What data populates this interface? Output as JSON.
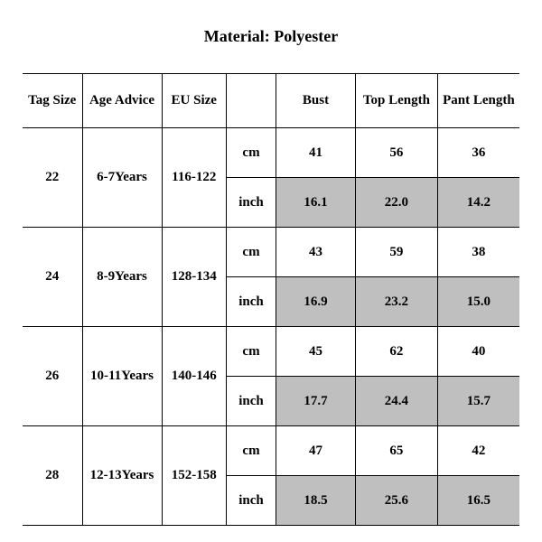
{
  "title": "Material: Polyester",
  "columns": {
    "tag_size": "Tag Size",
    "age_advice": "Age Advice",
    "eu_size": "EU Size",
    "unit": "",
    "bust": "Bust",
    "top_length": "Top Length",
    "pant_length": "Pant Length"
  },
  "unit_labels": {
    "cm": "cm",
    "inch": "inch"
  },
  "colors": {
    "background": "#ffffff",
    "text": "#000000",
    "border": "#000000",
    "shaded_cell": "#bfbfbf"
  },
  "typography": {
    "font_family": "Times New Roman",
    "title_fontsize": 18,
    "cell_fontsize": 15,
    "all_bold": true
  },
  "col_widths_pct": {
    "tag_size": 12,
    "age_advice": 16,
    "eu_size": 13,
    "unit": 10,
    "bust": 16,
    "top_length": 16.5,
    "pant_length": 16.5
  },
  "rows": [
    {
      "tag_size": "22",
      "age_advice": "6-7Years",
      "eu_size": "116-122",
      "cm": {
        "bust": "41",
        "top_length": "56",
        "pant_length": "36"
      },
      "inch": {
        "bust": "16.1",
        "top_length": "22.0",
        "pant_length": "14.2"
      }
    },
    {
      "tag_size": "24",
      "age_advice": "8-9Years",
      "eu_size": "128-134",
      "cm": {
        "bust": "43",
        "top_length": "59",
        "pant_length": "38"
      },
      "inch": {
        "bust": "16.9",
        "top_length": "23.2",
        "pant_length": "15.0"
      }
    },
    {
      "tag_size": "26",
      "age_advice": "10-11Years",
      "eu_size": "140-146",
      "cm": {
        "bust": "45",
        "top_length": "62",
        "pant_length": "40"
      },
      "inch": {
        "bust": "17.7",
        "top_length": "24.4",
        "pant_length": "15.7"
      }
    },
    {
      "tag_size": "28",
      "age_advice": "12-13Years",
      "eu_size": "152-158",
      "cm": {
        "bust": "47",
        "top_length": "65",
        "pant_length": "42"
      },
      "inch": {
        "bust": "18.5",
        "top_length": "25.6",
        "pant_length": "16.5"
      }
    }
  ]
}
